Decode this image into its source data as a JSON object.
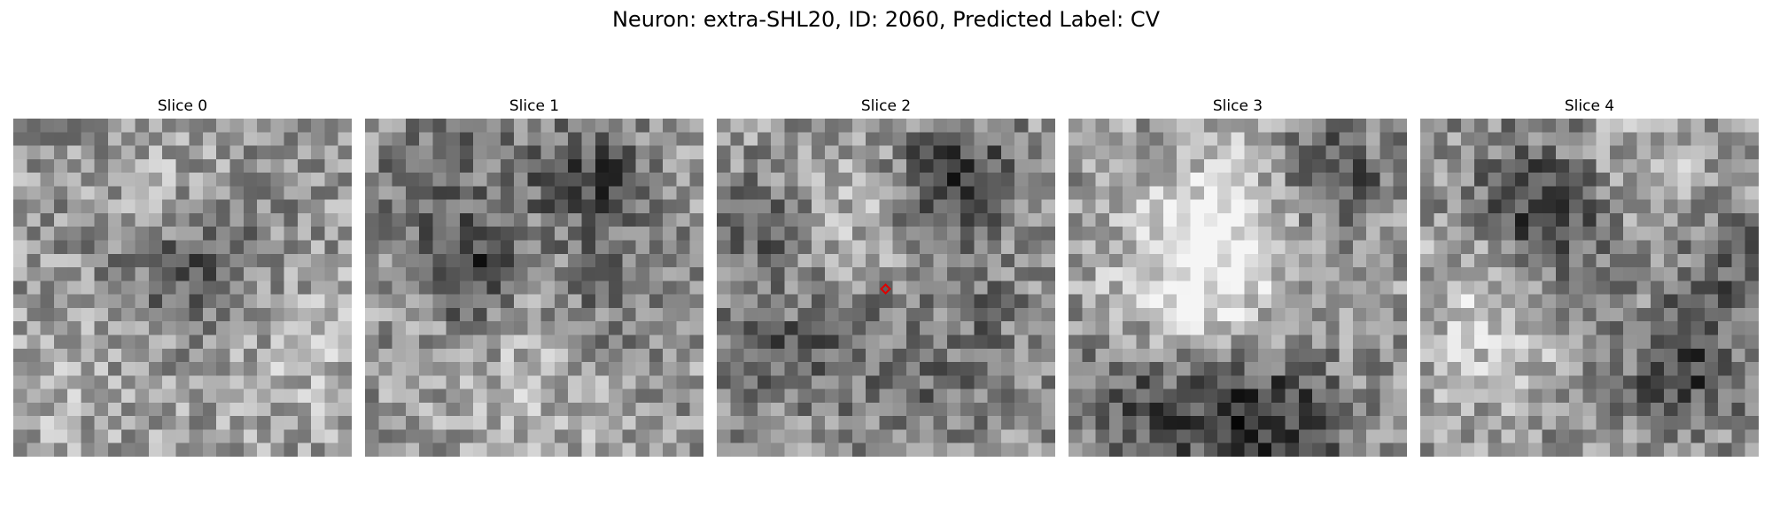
{
  "figure": {
    "title": "Neuron: extra-SHL20, ID: 2060, Predicted Label: CV",
    "slices": [
      {
        "label": "Slice 0",
        "marker": false
      },
      {
        "label": "Slice 1",
        "marker": false
      },
      {
        "label": "Slice 2",
        "marker": true
      },
      {
        "label": "Slice 3",
        "marker": false
      },
      {
        "label": "Slice 4",
        "marker": false
      }
    ],
    "marker_color": "#e00000",
    "marker_shape": "diamond",
    "colormap": "grayscale"
  }
}
